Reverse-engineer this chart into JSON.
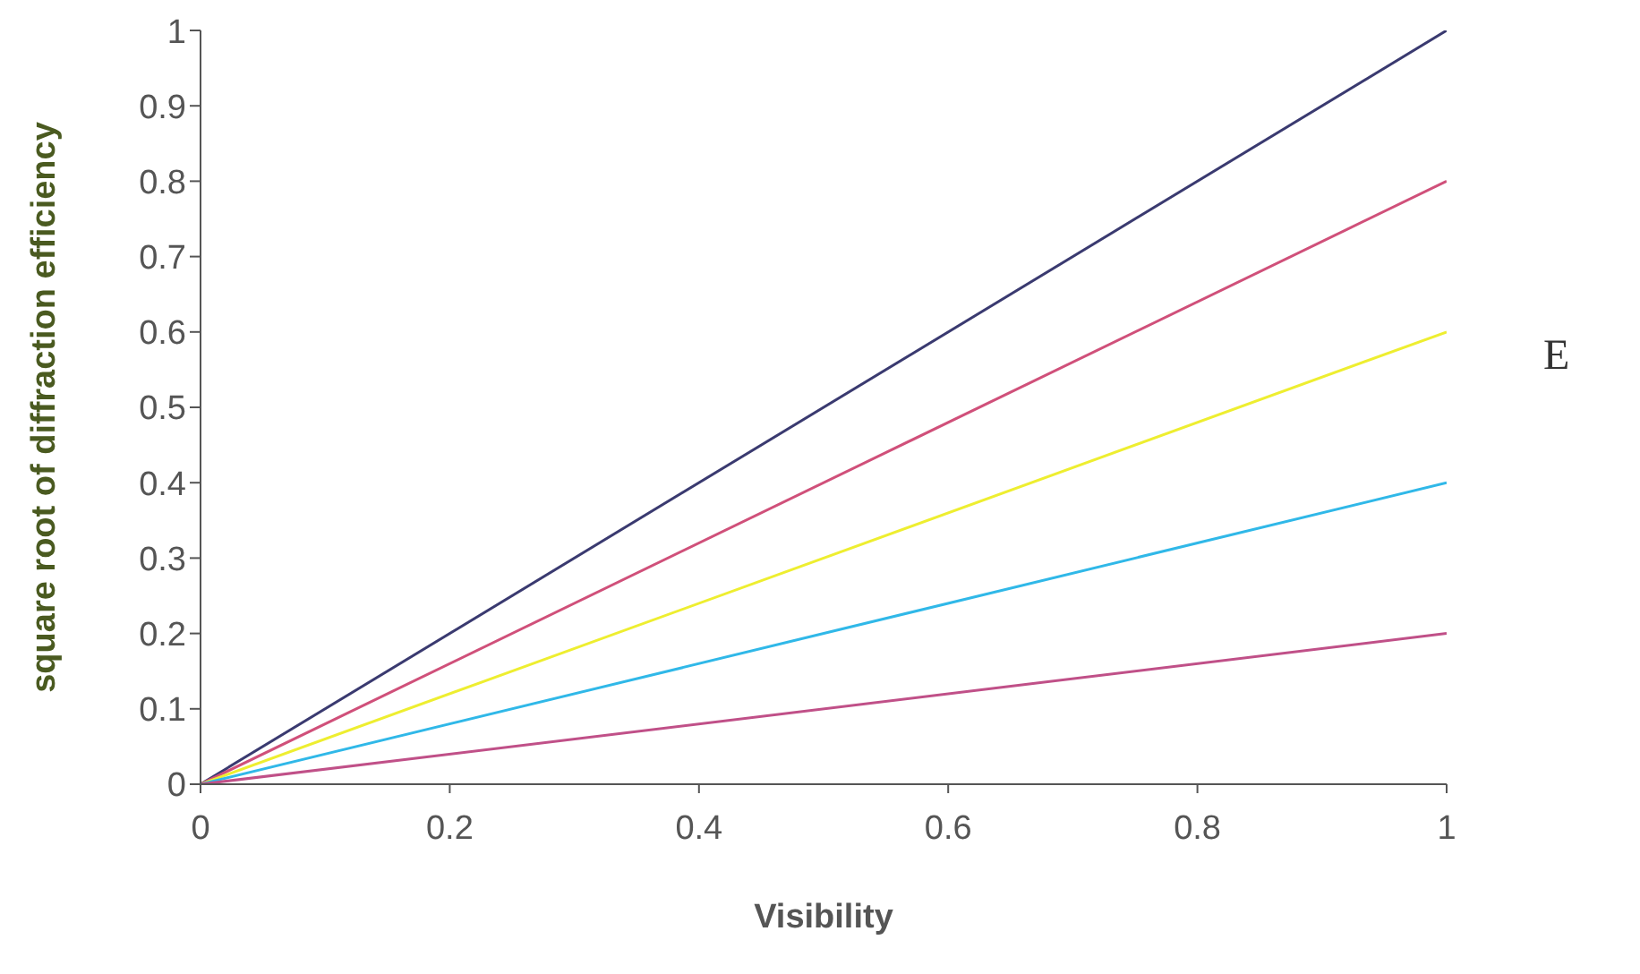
{
  "chart_data": {
    "type": "line",
    "xlabel": "Visibility",
    "ylabel": "square root of diffraction efficiency",
    "annotations": [
      "E"
    ],
    "x": [
      0,
      1
    ],
    "series": [
      {
        "color": "#3a3a70",
        "values": [
          0,
          1
        ]
      },
      {
        "color": "#d0507a",
        "values": [
          0,
          0.8
        ]
      },
      {
        "color": "#eeee30",
        "values": [
          0,
          0.6
        ]
      },
      {
        "color": "#30b8e8",
        "values": [
          0,
          0.4
        ]
      },
      {
        "color": "#c05088",
        "values": [
          0,
          0.2
        ]
      }
    ],
    "xlim": [
      0,
      1
    ],
    "xticks": [
      0,
      0.2,
      0.4,
      0.6,
      0.8,
      1
    ],
    "ylim": [
      0,
      1
    ],
    "yticks": [
      0,
      0.1,
      0.2,
      0.3,
      0.4,
      0.5,
      0.6,
      0.7,
      0.8,
      0.9,
      1
    ],
    "grid": false,
    "legend": false,
    "marker": "none",
    "line_style": "solid"
  }
}
